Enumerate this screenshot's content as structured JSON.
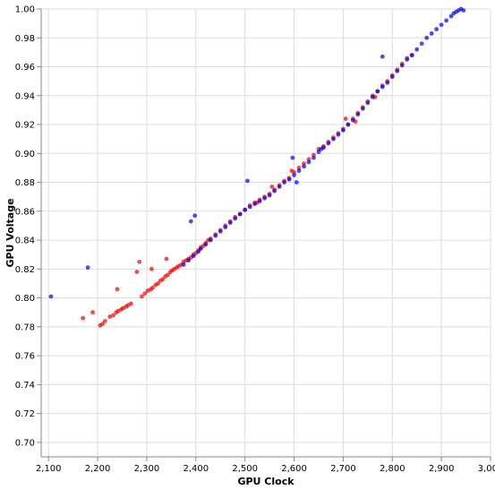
{
  "chart_data": {
    "type": "scatter",
    "title": "",
    "xlabel": "GPU Clock",
    "ylabel": "GPU Voltage",
    "xlim": [
      2085,
      3000
    ],
    "ylim": [
      0.69,
      1.0
    ],
    "grid": true,
    "x_ticks": [
      2100,
      2200,
      2300,
      2400,
      2500,
      2600,
      2700,
      2800,
      2900,
      3000
    ],
    "x_tick_labels": [
      "2,100",
      "2,200",
      "2,300",
      "2,400",
      "2,500",
      "2,600",
      "2,700",
      "2,800",
      "2,900",
      "3,000"
    ],
    "y_ticks": [
      0.7,
      0.72,
      0.74,
      0.76,
      0.78,
      0.8,
      0.82,
      0.84,
      0.86,
      0.88,
      0.9,
      0.92,
      0.94,
      0.96,
      0.98,
      1.0
    ],
    "y_tick_labels": [
      "0.70",
      "0.72",
      "0.74",
      "0.76",
      "0.78",
      "0.80",
      "0.82",
      "0.84",
      "0.86",
      "0.88",
      "0.90",
      "0.92",
      "0.94",
      "0.96",
      "0.98",
      "1.00"
    ],
    "series": [
      {
        "color": "#ee0000",
        "points": [
          [
            2170,
            0.786
          ],
          [
            2190,
            0.79
          ],
          [
            2205,
            0.781
          ],
          [
            2210,
            0.782
          ],
          [
            2215,
            0.784
          ],
          [
            2225,
            0.787
          ],
          [
            2232,
            0.788
          ],
          [
            2238,
            0.79
          ],
          [
            2242,
            0.791
          ],
          [
            2248,
            0.792
          ],
          [
            2252,
            0.793
          ],
          [
            2258,
            0.794
          ],
          [
            2262,
            0.795
          ],
          [
            2268,
            0.796
          ],
          [
            2240,
            0.806
          ],
          [
            2280,
            0.818
          ],
          [
            2285,
            0.825
          ],
          [
            2290,
            0.801
          ],
          [
            2296,
            0.803
          ],
          [
            2302,
            0.805
          ],
          [
            2308,
            0.806
          ],
          [
            2312,
            0.807
          ],
          [
            2318,
            0.809
          ],
          [
            2323,
            0.81
          ],
          [
            2328,
            0.812
          ],
          [
            2333,
            0.813
          ],
          [
            2338,
            0.815
          ],
          [
            2343,
            0.816
          ],
          [
            2348,
            0.818
          ],
          [
            2352,
            0.819
          ],
          [
            2356,
            0.82
          ],
          [
            2361,
            0.821
          ],
          [
            2365,
            0.822
          ],
          [
            2370,
            0.823
          ],
          [
            2375,
            0.825
          ],
          [
            2340,
            0.827
          ],
          [
            2310,
            0.82
          ],
          [
            2380,
            0.826
          ],
          [
            2385,
            0.827
          ],
          [
            2390,
            0.828
          ],
          [
            2395,
            0.83
          ],
          [
            2400,
            0.831
          ],
          [
            2405,
            0.833
          ],
          [
            2410,
            0.835
          ],
          [
            2415,
            0.836
          ],
          [
            2420,
            0.838
          ],
          [
            2425,
            0.84
          ],
          [
            2430,
            0.841
          ],
          [
            2440,
            0.844
          ],
          [
            2450,
            0.847
          ],
          [
            2460,
            0.85
          ],
          [
            2470,
            0.853
          ],
          [
            2480,
            0.856
          ],
          [
            2490,
            0.858
          ],
          [
            2500,
            0.861
          ],
          [
            2510,
            0.864
          ],
          [
            2520,
            0.866
          ],
          [
            2530,
            0.868
          ],
          [
            2540,
            0.87
          ],
          [
            2550,
            0.872
          ],
          [
            2560,
            0.875
          ],
          [
            2570,
            0.878
          ],
          [
            2580,
            0.881
          ],
          [
            2590,
            0.883
          ],
          [
            2595,
            0.888
          ],
          [
            2600,
            0.887
          ],
          [
            2610,
            0.89
          ],
          [
            2620,
            0.893
          ],
          [
            2630,
            0.896
          ],
          [
            2640,
            0.899
          ],
          [
            2650,
            0.903
          ],
          [
            2660,
            0.905
          ],
          [
            2670,
            0.908
          ],
          [
            2680,
            0.911
          ],
          [
            2690,
            0.914
          ],
          [
            2700,
            0.917
          ],
          [
            2705,
            0.924
          ],
          [
            2710,
            0.92
          ],
          [
            2720,
            0.924
          ],
          [
            2730,
            0.928
          ],
          [
            2740,
            0.932
          ],
          [
            2750,
            0.936
          ],
          [
            2760,
            0.94
          ],
          [
            2770,
            0.943
          ],
          [
            2780,
            0.947
          ],
          [
            2790,
            0.95
          ],
          [
            2800,
            0.954
          ],
          [
            2810,
            0.958
          ],
          [
            2820,
            0.962
          ],
          [
            2830,
            0.966
          ],
          [
            2840,
            0.968
          ],
          [
            2525,
            0.866
          ],
          [
            2555,
            0.877
          ],
          [
            2725,
            0.922
          ],
          [
            2765,
            0.939
          ]
        ]
      },
      {
        "color": "#0000ee",
        "points": [
          [
            2105,
            0.801
          ],
          [
            2180,
            0.821
          ],
          [
            2390,
            0.853
          ],
          [
            2398,
            0.857
          ],
          [
            2505,
            0.881
          ],
          [
            2597,
            0.897
          ],
          [
            2605,
            0.88
          ],
          [
            2780,
            0.967
          ],
          [
            2375,
            0.823
          ],
          [
            2385,
            0.826
          ],
          [
            2395,
            0.829
          ],
          [
            2405,
            0.832
          ],
          [
            2410,
            0.834
          ],
          [
            2420,
            0.837
          ],
          [
            2430,
            0.84
          ],
          [
            2440,
            0.843
          ],
          [
            2450,
            0.846
          ],
          [
            2460,
            0.849
          ],
          [
            2470,
            0.852
          ],
          [
            2480,
            0.855
          ],
          [
            2490,
            0.858
          ],
          [
            2500,
            0.861
          ],
          [
            2510,
            0.863
          ],
          [
            2520,
            0.865
          ],
          [
            2530,
            0.867
          ],
          [
            2540,
            0.869
          ],
          [
            2550,
            0.871
          ],
          [
            2560,
            0.874
          ],
          [
            2570,
            0.877
          ],
          [
            2580,
            0.88
          ],
          [
            2590,
            0.882
          ],
          [
            2600,
            0.885
          ],
          [
            2610,
            0.888
          ],
          [
            2620,
            0.891
          ],
          [
            2630,
            0.894
          ],
          [
            2640,
            0.897
          ],
          [
            2650,
            0.901
          ],
          [
            2655,
            0.903
          ],
          [
            2660,
            0.904
          ],
          [
            2670,
            0.907
          ],
          [
            2680,
            0.91
          ],
          [
            2690,
            0.913
          ],
          [
            2700,
            0.916
          ],
          [
            2710,
            0.92
          ],
          [
            2720,
            0.923
          ],
          [
            2730,
            0.927
          ],
          [
            2740,
            0.931
          ],
          [
            2750,
            0.935
          ],
          [
            2760,
            0.939
          ],
          [
            2770,
            0.943
          ],
          [
            2780,
            0.946
          ],
          [
            2790,
            0.949
          ],
          [
            2800,
            0.953
          ],
          [
            2810,
            0.957
          ],
          [
            2820,
            0.961
          ],
          [
            2830,
            0.965
          ],
          [
            2840,
            0.968
          ],
          [
            2850,
            0.972
          ],
          [
            2860,
            0.976
          ],
          [
            2870,
            0.98
          ],
          [
            2880,
            0.983
          ],
          [
            2890,
            0.986
          ],
          [
            2900,
            0.989
          ],
          [
            2910,
            0.992
          ],
          [
            2920,
            0.995
          ],
          [
            2930,
            0.998
          ],
          [
            2940,
            1.0
          ],
          [
            2945,
            0.999
          ],
          [
            2935,
            0.999
          ],
          [
            2925,
            0.997
          ]
        ]
      }
    ]
  }
}
